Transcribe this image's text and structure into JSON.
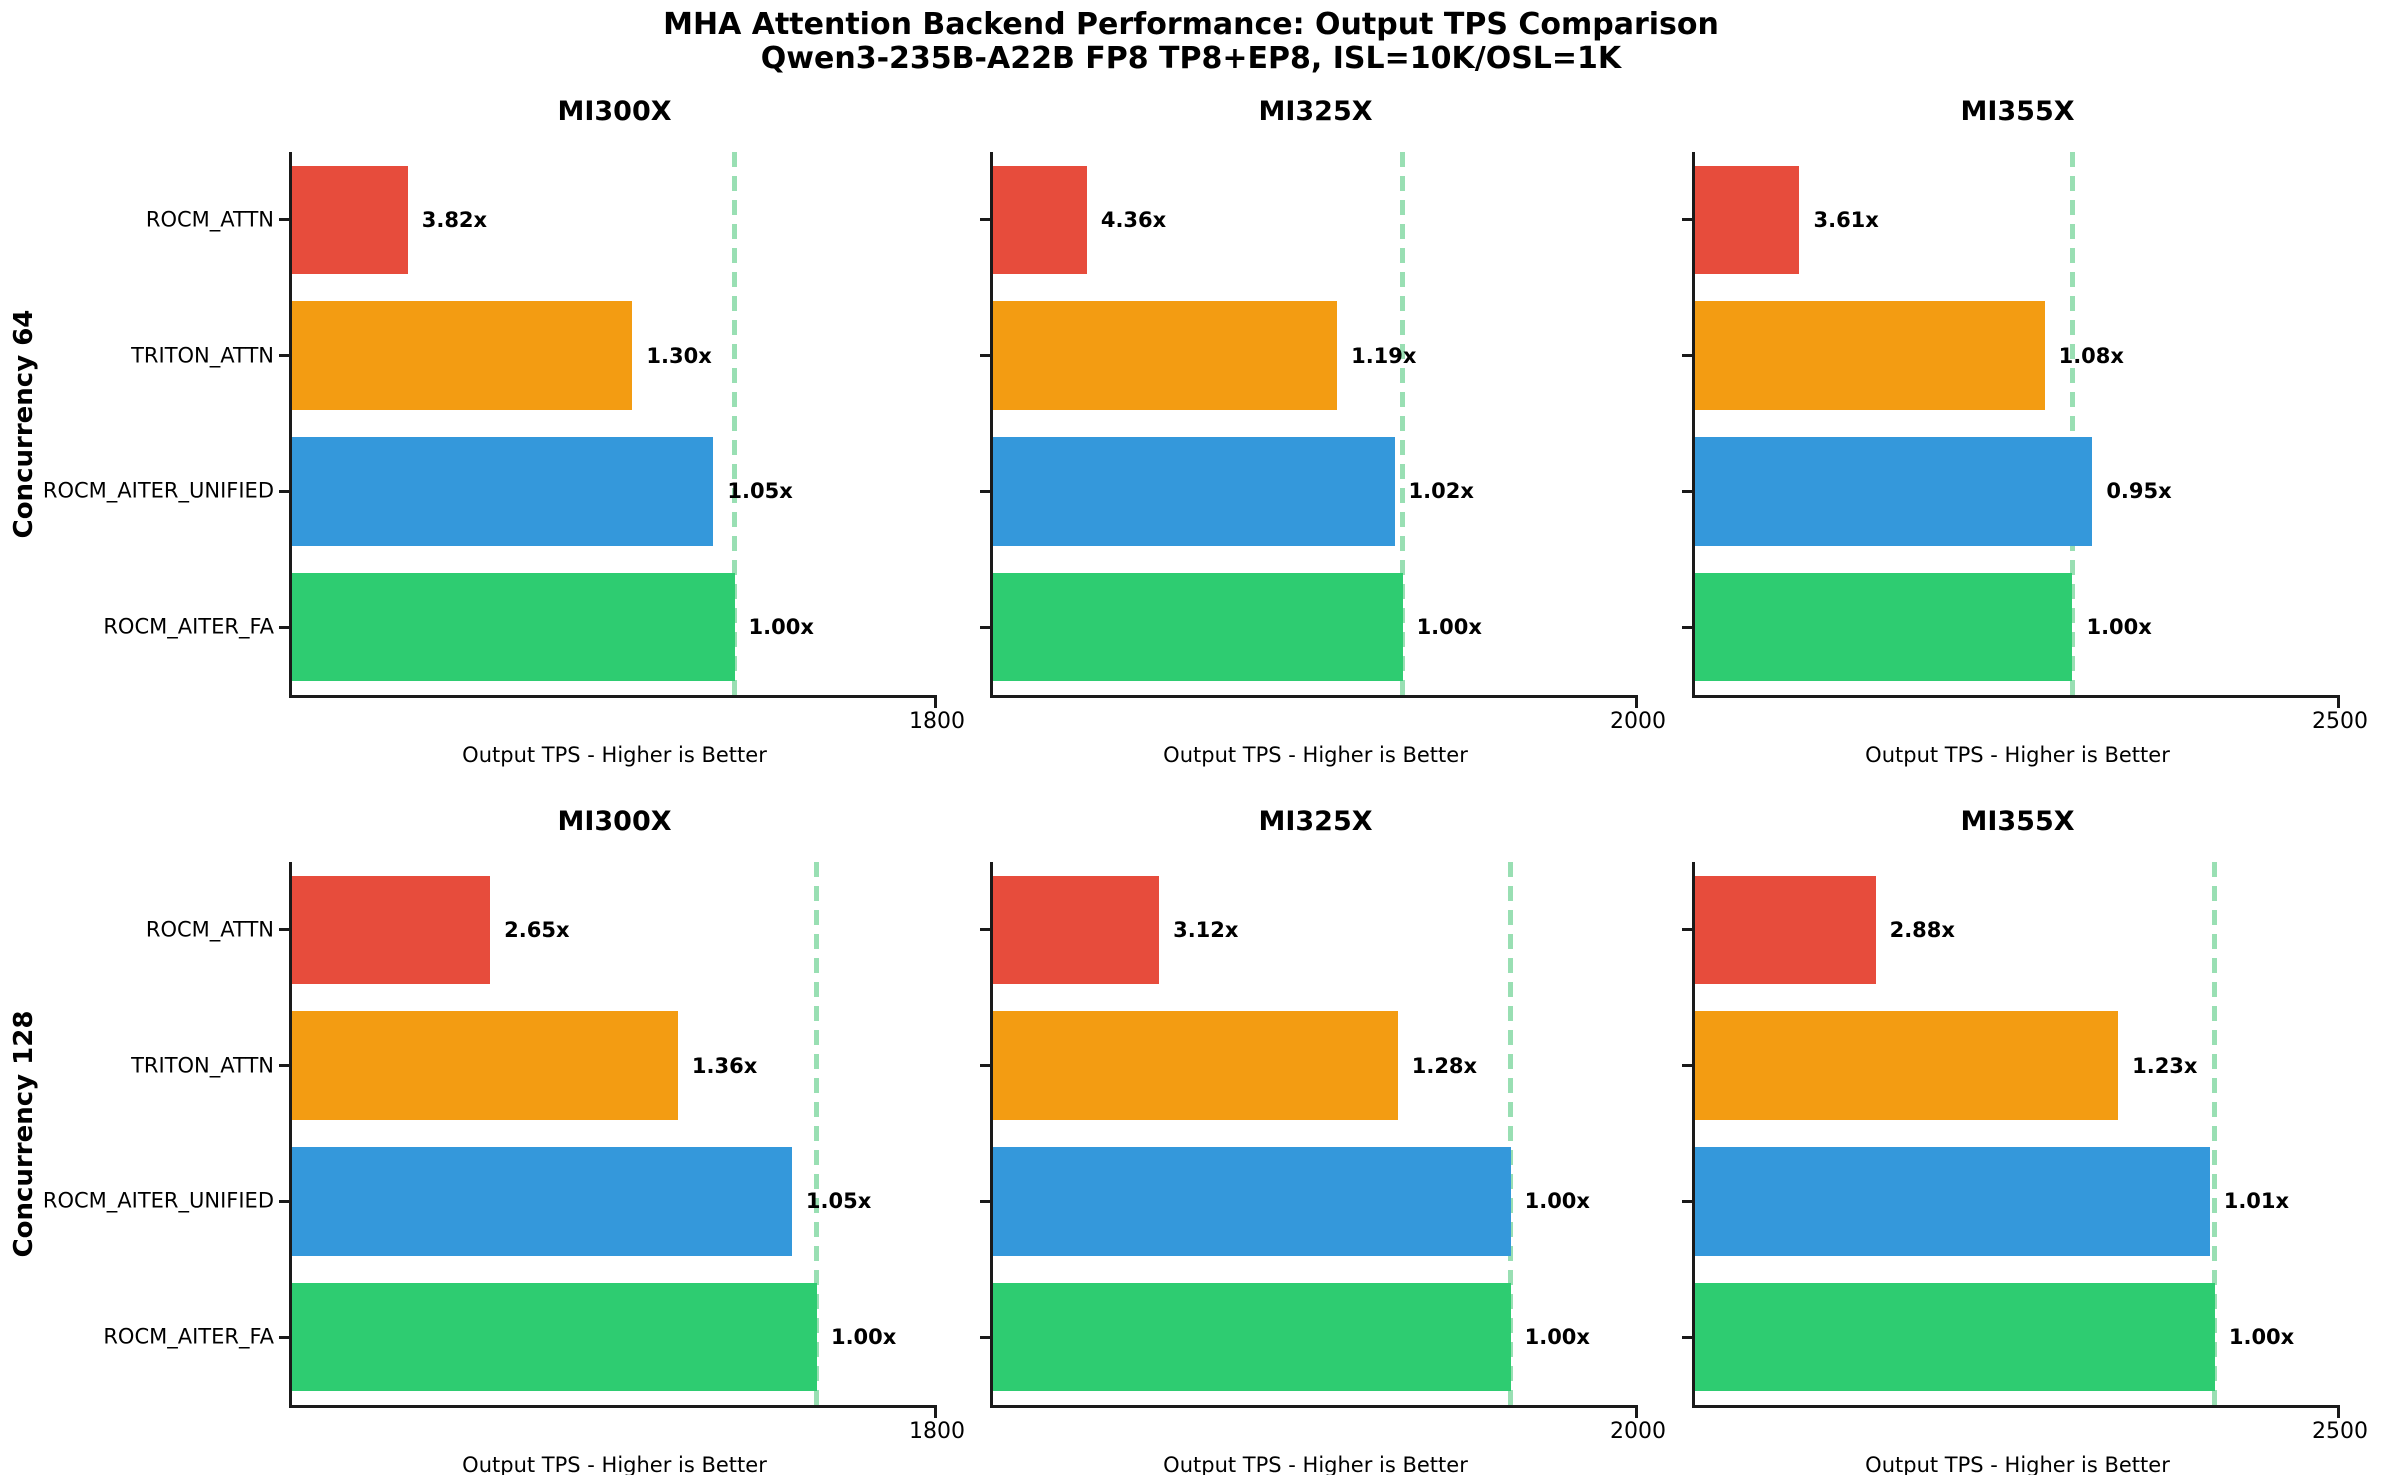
{
  "title": "MHA Attention Backend Performance: Output TPS Comparison",
  "subtitle": "Qwen3-235B-A22B FP8 TP8+EP8, ISL=10K/OSL=1K",
  "colors": {
    "rocm_attn": "#e74c3c",
    "triton_attn": "#f39c12",
    "rocm_aiter_unified": "#3498db",
    "rocm_aiter_fa": "#2ecc71",
    "baseline_dash": "#99dfb3",
    "axis": "#1a1a1a",
    "text": "#000000",
    "background": "#ffffff"
  },
  "chart_data": {
    "type": "bar",
    "orientation": "horizontal",
    "grid": false,
    "legend": "none",
    "categories": [
      "ROCM_ATTN",
      "TRITON_ATTN",
      "ROCM_AITER_UNIFIED",
      "ROCM_AITER_FA"
    ],
    "bar_colors": [
      "#e74c3c",
      "#f39c12",
      "#3498db",
      "#2ecc71"
    ],
    "xlabel": "Output TPS - Higher is Better",
    "value_unit": "Output TPS (estimated from axis scale)",
    "rows": [
      {
        "row_label": "Concurrency 64",
        "subplots": [
          {
            "title": "MI300X",
            "xlim": [
              0,
              1800
            ],
            "xtick_labels": [
              "1800"
            ],
            "values": [
              323,
              950,
              1176,
              1235
            ],
            "speedup_labels": [
              "3.82x",
              "1.30x",
              "1.05x",
              "1.00x"
            ],
            "baseline_value": 1235
          },
          {
            "title": "MI325X",
            "xlim": [
              0,
              2000
            ],
            "xtick_labels": [
              "2000"
            ],
            "values": [
              291,
              1067,
              1245,
              1270
            ],
            "speedup_labels": [
              "4.36x",
              "1.19x",
              "1.02x",
              "1.00x"
            ],
            "baseline_value": 1270
          },
          {
            "title": "MI355X",
            "xlim": [
              0,
              2500
            ],
            "xtick_labels": [
              "2500"
            ],
            "values": [
              405,
              1355,
              1540,
              1463
            ],
            "speedup_labels": [
              "3.61x",
              "1.08x",
              "0.95x",
              "1.00x"
            ],
            "baseline_value": 1463
          }
        ]
      },
      {
        "row_label": "Concurrency 128",
        "subplots": [
          {
            "title": "MI300X",
            "xlim": [
              0,
              1800
            ],
            "xtick_labels": [
              "1800"
            ],
            "values": [
              553,
              1077,
              1395,
              1465
            ],
            "speedup_labels": [
              "2.65x",
              "1.36x",
              "1.05x",
              "1.00x"
            ],
            "baseline_value": 1465
          },
          {
            "title": "MI325X",
            "xlim": [
              0,
              2000
            ],
            "xtick_labels": [
              "2000"
            ],
            "values": [
              515,
              1255,
              1605,
              1605
            ],
            "speedup_labels": [
              "3.12x",
              "1.28x",
              "1.00x",
              "1.00x"
            ],
            "baseline_value": 1605
          },
          {
            "title": "MI355X",
            "xlim": [
              0,
              2500
            ],
            "xtick_labels": [
              "2500"
            ],
            "values": [
              700,
              1640,
              1995,
              2015
            ],
            "speedup_labels": [
              "2.88x",
              "1.23x",
              "1.01x",
              "1.00x"
            ],
            "baseline_value": 2015
          }
        ]
      }
    ]
  }
}
